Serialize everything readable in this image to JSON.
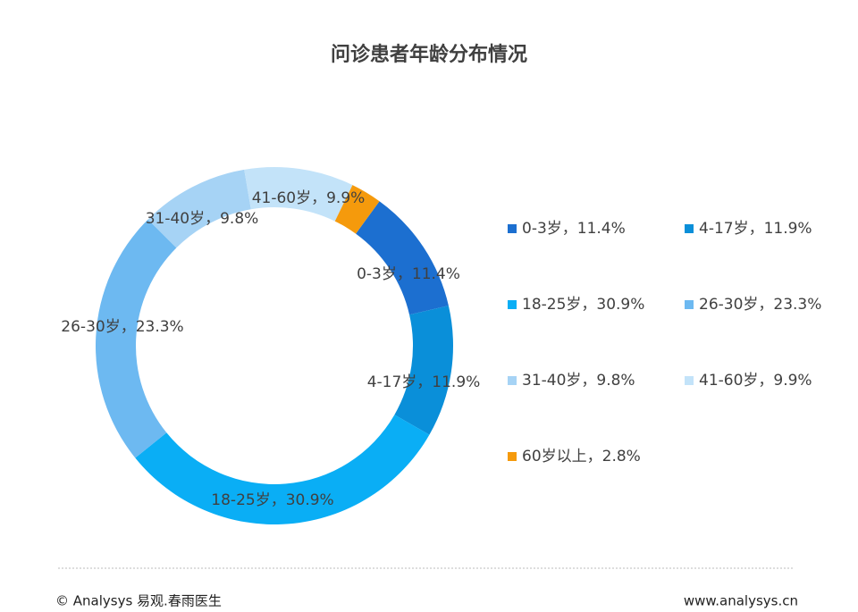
{
  "chart_data": {
    "type": "donut",
    "title": "问诊患者年龄分布情况",
    "categories": [
      "0-3岁，11.4%",
      "4-17岁，11.9%",
      "18-25岁，30.9%",
      "26-30岁，23.3%",
      "31-40岁，9.8%",
      "41-60岁，9.9%",
      "60岁以上，2.8%"
    ],
    "values": [
      11.4,
      11.9,
      30.9,
      23.3,
      9.8,
      9.9,
      2.8
    ],
    "colors": [
      "#1c6fd0",
      "#0a8fd9",
      "#0aaef5",
      "#6db9f1",
      "#a6d3f5",
      "#c3e3f9",
      "#f59a0c"
    ],
    "legend": "right"
  },
  "footer": {
    "left": "© Analysys 易观.春雨医生",
    "right": "www.analysys.cn"
  }
}
